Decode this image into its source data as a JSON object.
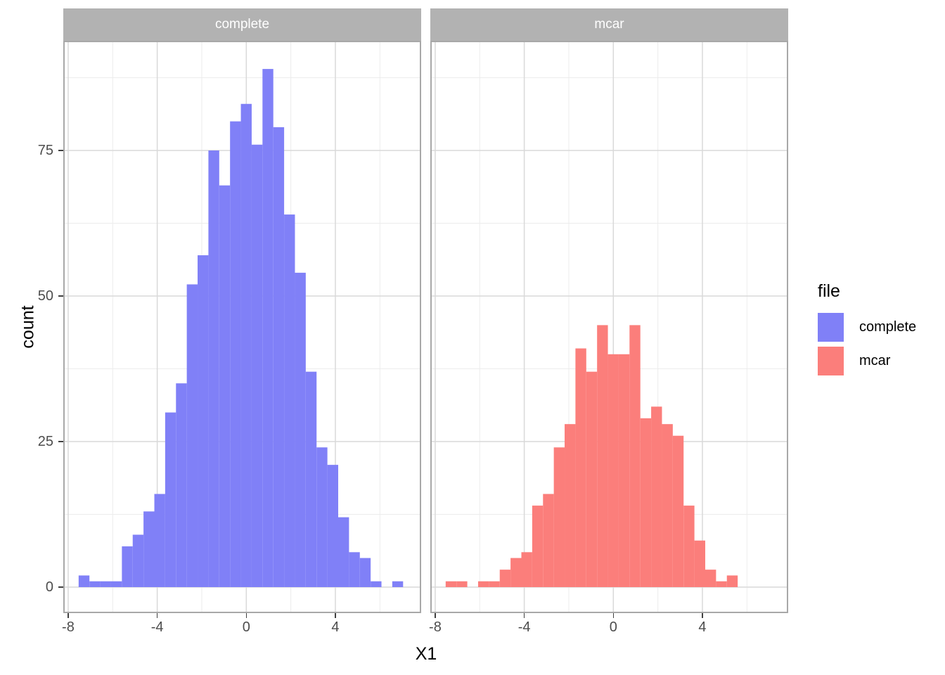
{
  "axes": {
    "x_title": "X1",
    "y_title": "count",
    "x_ticks": [
      -8,
      -4,
      0,
      4
    ],
    "y_ticks": [
      0,
      25,
      50,
      75
    ]
  },
  "facets": [
    {
      "label": "complete"
    },
    {
      "label": "mcar"
    }
  ],
  "legend": {
    "title": "file",
    "items": [
      {
        "label": "complete",
        "color": "#8080F7"
      },
      {
        "label": "mcar",
        "color": "#FB7E7B"
      }
    ]
  },
  "chart_data": {
    "type": "bar",
    "subtype": "faceted_histogram",
    "x_variable": "X1",
    "y_variable": "count",
    "facet_variable": "file",
    "bin_start": -7.53,
    "binwidth": 0.4857,
    "x_domain": [
      -8.26,
      7.78
    ],
    "y_domain": [
      -4.5,
      93.5
    ],
    "x_axis_ticks": [
      -8,
      -4,
      0,
      4
    ],
    "y_axis_ticks": [
      0,
      25,
      50,
      75
    ],
    "gridlines": {
      "x_major": [
        -8,
        -4,
        0,
        4
      ],
      "x_minor": [
        -6,
        -2,
        2,
        6
      ],
      "y_major": [
        0,
        25,
        50,
        75
      ],
      "y_minor": [
        12.5,
        37.5,
        62.5,
        87.5
      ]
    },
    "series": [
      {
        "name": "complete",
        "color": "#8080F7",
        "counts": [
          2,
          1,
          1,
          1,
          7,
          9,
          13,
          16,
          30,
          35,
          52,
          57,
          75,
          69,
          80,
          83,
          76,
          89,
          79,
          64,
          54,
          37,
          24,
          21,
          12,
          6,
          5,
          1,
          0,
          1
        ]
      },
      {
        "name": "mcar",
        "color": "#FB7E7B",
        "counts": [
          1,
          1,
          0,
          1,
          1,
          3,
          5,
          6,
          14,
          16,
          24,
          28,
          41,
          37,
          45,
          40,
          40,
          45,
          29,
          31,
          28,
          26,
          14,
          8,
          3,
          1,
          2,
          0,
          0,
          0
        ]
      }
    ]
  },
  "theme": {
    "strip_background": "#B2B2B2",
    "strip_text": "#FFFFFF",
    "panel_background": "#FFFFFF",
    "panel_border": "#A8A8A8",
    "grid_major": "#D9D9D9",
    "grid_minor": "#ECECEC",
    "tick_color": "#404040",
    "tick_label_color": "#4D4D4D"
  }
}
